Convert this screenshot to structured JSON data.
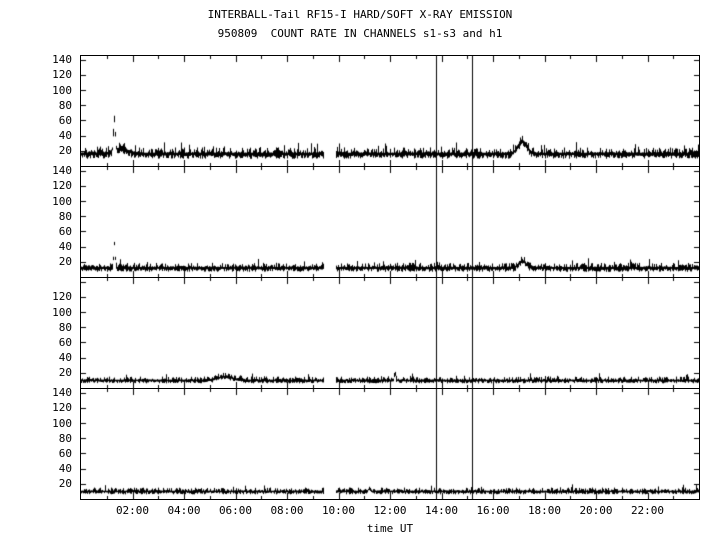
{
  "chart_data": {
    "type": "line",
    "title": "INTERBALL-Tail RF15-I HARD/SOFT X-RAY EMISSION",
    "subtitle": "950809  COUNT RATE IN CHANNELS s1-s3 and h1",
    "xlabel": "time UT",
    "x_ticks": [
      "02:00",
      "04:00",
      "06:00",
      "08:00",
      "10:00",
      "12:00",
      "14:00",
      "16:00",
      "18:00",
      "20:00",
      "22:00"
    ],
    "x_tick_hours": [
      2,
      4,
      6,
      8,
      10,
      12,
      14,
      16,
      18,
      20,
      22
    ],
    "x_range_hours": [
      0,
      24
    ],
    "y_range": [
      0,
      145
    ],
    "grid": false,
    "legend": false,
    "colors": {
      "trace": "#000000",
      "background": "#ffffff",
      "axis": "#000000"
    },
    "data_gap_hours": [
      9.45,
      9.9
    ],
    "vertical_marker_lines_hours": [
      13.8,
      15.2
    ],
    "panels": [
      {
        "channel": "s1",
        "y_ticks": [
          140,
          120,
          100,
          80,
          60,
          40,
          20
        ],
        "baseline": 16,
        "noise": 5,
        "spikes": [
          {
            "t": 1.3,
            "amp": 42,
            "w": 0.05
          },
          {
            "t": 1.55,
            "amp": 7,
            "w": 0.35
          },
          {
            "t": 17.15,
            "amp": 16,
            "w": 0.25
          }
        ]
      },
      {
        "channel": "s2",
        "y_ticks": [
          140,
          120,
          100,
          80,
          60,
          40,
          20
        ],
        "baseline": 12,
        "noise": 4,
        "spikes": [
          {
            "t": 1.3,
            "amp": 32,
            "w": 0.04
          },
          {
            "t": 17.15,
            "amp": 9,
            "w": 0.2
          }
        ]
      },
      {
        "channel": "s3",
        "y_ticks": [
          120,
          100,
          80,
          60,
          40,
          20
        ],
        "baseline": 10,
        "noise": 3,
        "spikes": [
          {
            "t": 5.6,
            "amp": 5,
            "w": 0.4
          },
          {
            "t": 12.2,
            "amp": 10,
            "w": 0.04
          }
        ]
      },
      {
        "channel": "h1",
        "y_ticks": [
          140,
          120,
          100,
          80,
          60,
          40,
          20
        ],
        "baseline": 10,
        "noise": 3,
        "spikes": [
          {
            "t": 11.2,
            "amp": 4,
            "w": 0.05
          }
        ]
      }
    ]
  }
}
